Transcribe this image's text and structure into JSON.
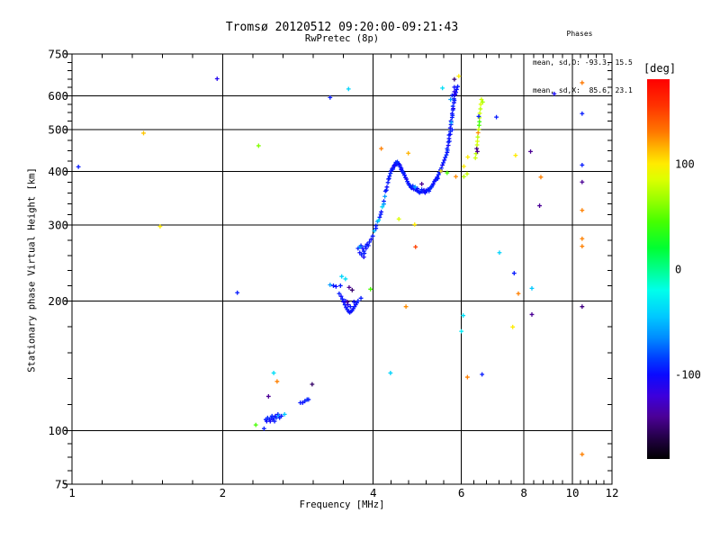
{
  "header": {
    "title": "Tromsø 20120512 09:20:00-09:21:43",
    "subtitle": "RwPretec (8p)"
  },
  "phases": {
    "heading": "Phases",
    "mean_o": "mean, sd,O: -93.3, 15.5",
    "mean_x": "mean, sd,X:  85.6, 23.1"
  },
  "chart_data": {
    "type": "scatter",
    "title": "Tromsø 20120512 09:20:00-09:21:43",
    "subtitle": "RwPretec (8p)",
    "xlabel": "Frequency [MHz]",
    "ylabel": "Stationary phase Virtual Height [km]",
    "x_scale": "log",
    "y_scale": "log",
    "xlim": [
      1,
      12
    ],
    "ylim": [
      75,
      750
    ],
    "x_major_ticks": [
      1,
      2,
      4,
      6,
      8,
      10,
      12
    ],
    "y_major_ticks": [
      75,
      100,
      200,
      300,
      400,
      500,
      600,
      750
    ],
    "grid_x": [
      2,
      4,
      6,
      8,
      10
    ],
    "grid_y": [
      100,
      200,
      300,
      400,
      500,
      600
    ],
    "grid_on": true,
    "marker": "plus",
    "frame_color": "#000000",
    "background_color": "#ffffff",
    "colorbar": {
      "label": "[deg]",
      "min": -180,
      "max": 180,
      "ticks": [
        {
          "value": 100,
          "label": "100"
        },
        {
          "value": 0,
          "label": "0"
        },
        {
          "value": -100,
          "label": "-100"
        }
      ],
      "colormap": [
        [
          180,
          [
            255,
            0,
            0
          ]
        ],
        [
          155,
          [
            255,
            50,
            0
          ]
        ],
        [
          130,
          [
            255,
            120,
            0
          ]
        ],
        [
          115,
          [
            255,
            180,
            0
          ]
        ],
        [
          100,
          [
            255,
            235,
            0
          ]
        ],
        [
          85,
          [
            220,
            255,
            0
          ]
        ],
        [
          65,
          [
            150,
            255,
            0
          ]
        ],
        [
          45,
          [
            70,
            255,
            0
          ]
        ],
        [
          20,
          [
            0,
            255,
            50
          ]
        ],
        [
          0,
          [
            0,
            255,
            140
          ]
        ],
        [
          -20,
          [
            0,
            255,
            235
          ]
        ],
        [
          -45,
          [
            0,
            200,
            255
          ]
        ],
        [
          -65,
          [
            0,
            140,
            255
          ]
        ],
        [
          -85,
          [
            0,
            60,
            255
          ]
        ],
        [
          -100,
          [
            10,
            10,
            255
          ]
        ],
        [
          -120,
          [
            60,
            0,
            220
          ]
        ],
        [
          -140,
          [
            75,
            0,
            150
          ]
        ],
        [
          -160,
          [
            35,
            0,
            70
          ]
        ],
        [
          -180,
          [
            0,
            0,
            0
          ]
        ]
      ]
    },
    "points_format": [
      "frequency_MHz",
      "virtual_height_km",
      "phase_deg"
    ],
    "points": [
      [
        2.33,
        103,
        45
      ],
      [
        2.42,
        101,
        -95
      ],
      [
        2.44,
        106,
        -95
      ],
      [
        2.45,
        105,
        -100
      ],
      [
        2.46,
        107,
        -90
      ],
      [
        2.47,
        120,
        -140
      ],
      [
        2.48,
        106,
        -95
      ],
      [
        2.49,
        105,
        -105
      ],
      [
        2.5,
        107,
        -95
      ],
      [
        2.51,
        108,
        -90
      ],
      [
        2.52,
        106,
        -100
      ],
      [
        2.53,
        136,
        -35
      ],
      [
        2.53,
        107,
        -95
      ],
      [
        2.54,
        105,
        -95
      ],
      [
        2.55,
        108,
        -100
      ],
      [
        2.56,
        107,
        -90
      ],
      [
        2.57,
        130,
        128
      ],
      [
        2.58,
        109,
        -95
      ],
      [
        2.59,
        108,
        -60
      ],
      [
        2.6,
        107,
        -95
      ],
      [
        2.62,
        108,
        -95
      ],
      [
        2.66,
        109,
        -45
      ],
      [
        2.86,
        116,
        -95
      ],
      [
        2.89,
        116,
        -100
      ],
      [
        2.92,
        117,
        -95
      ],
      [
        2.95,
        118,
        -90
      ],
      [
        2.97,
        118,
        -95
      ],
      [
        3.02,
        128,
        -152
      ],
      [
        3.28,
        218,
        -60
      ],
      [
        3.33,
        217,
        -95
      ],
      [
        3.37,
        216,
        -100
      ],
      [
        3.44,
        217,
        -95
      ],
      [
        3.46,
        228,
        -40
      ],
      [
        3.52,
        225,
        -35
      ],
      [
        3.42,
        208,
        -95
      ],
      [
        3.45,
        205,
        -100
      ],
      [
        3.47,
        202,
        -95
      ],
      [
        3.49,
        199,
        -105
      ],
      [
        3.51,
        196,
        -95
      ],
      [
        3.53,
        193,
        -100
      ],
      [
        3.55,
        191,
        -95
      ],
      [
        3.57,
        189,
        -100
      ],
      [
        3.59,
        188,
        -95
      ],
      [
        3.61,
        189,
        -105
      ],
      [
        3.63,
        190,
        -95
      ],
      [
        3.65,
        192,
        -100
      ],
      [
        3.67,
        194,
        -95
      ],
      [
        3.69,
        196,
        -100
      ],
      [
        3.71,
        198,
        -95
      ],
      [
        3.73,
        200,
        -95
      ],
      [
        3.66,
        199,
        -100
      ],
      [
        3.6,
        194,
        -95
      ],
      [
        3.56,
        196,
        -110
      ],
      [
        3.52,
        200,
        -100
      ],
      [
        3.78,
        203,
        -95
      ],
      [
        3.58,
        215,
        -140
      ],
      [
        3.63,
        212,
        -150
      ],
      [
        3.55,
        199,
        -140
      ],
      [
        3.73,
        265,
        -95
      ],
      [
        3.76,
        259,
        -100
      ],
      [
        3.79,
        256,
        -95
      ],
      [
        3.83,
        253,
        -105
      ],
      [
        3.84,
        258,
        -95
      ],
      [
        3.81,
        265,
        -100
      ],
      [
        3.78,
        269,
        -95
      ],
      [
        3.86,
        268,
        -90
      ],
      [
        3.89,
        271,
        -100
      ],
      [
        3.93,
        274,
        -95
      ],
      [
        3.96,
        278,
        -100
      ],
      [
        3.99,
        283,
        -95
      ],
      [
        3.76,
        267,
        -60
      ],
      [
        3.83,
        261,
        -95
      ],
      [
        3.87,
        265,
        -100
      ],
      [
        3.91,
        269,
        -95
      ],
      [
        4.02,
        291,
        -50
      ],
      [
        4.05,
        299,
        -95
      ],
      [
        4.08,
        306,
        -60
      ],
      [
        4.12,
        313,
        -95
      ],
      [
        4.15,
        322,
        -100
      ],
      [
        4.17,
        331,
        -40
      ],
      [
        4.2,
        341,
        -95
      ],
      [
        4.22,
        350,
        -60
      ],
      [
        4.23,
        360,
        -95
      ],
      [
        4.26,
        368,
        -100
      ],
      [
        4.28,
        377,
        -95
      ],
      [
        4.29,
        384,
        -105
      ],
      [
        4.31,
        390,
        -95
      ],
      [
        4.33,
        396,
        -90
      ],
      [
        4.34,
        401,
        -100
      ],
      [
        4.36,
        405,
        -95
      ],
      [
        4.38,
        408,
        -110
      ],
      [
        4.4,
        412,
        -95
      ],
      [
        4.41,
        414,
        -100
      ],
      [
        4.43,
        416,
        -95
      ],
      [
        4.45,
        418,
        -90
      ],
      [
        4.48,
        418,
        -100
      ],
      [
        4.5,
        416,
        -95
      ],
      [
        4.52,
        414,
        -105
      ],
      [
        4.53,
        410,
        -95
      ],
      [
        4.55,
        407,
        -100
      ],
      [
        4.57,
        401,
        -95
      ],
      [
        4.59,
        398,
        -90
      ],
      [
        4.62,
        392,
        -100
      ],
      [
        4.64,
        387,
        -95
      ],
      [
        4.66,
        384,
        -110
      ],
      [
        4.68,
        379,
        -95
      ],
      [
        4.7,
        375,
        -100
      ],
      [
        4.72,
        372,
        -95
      ],
      [
        4.74,
        371,
        -90
      ],
      [
        4.76,
        367,
        -100
      ],
      [
        4.78,
        366,
        -95
      ],
      [
        4.82,
        364,
        -105
      ],
      [
        4.86,
        363,
        -95
      ],
      [
        4.89,
        361,
        -100
      ],
      [
        4.93,
        359,
        -95
      ],
      [
        4.97,
        359,
        -90
      ],
      [
        5.01,
        359,
        -100
      ],
      [
        5.06,
        359,
        -95
      ],
      [
        5.1,
        361,
        -105
      ],
      [
        5.14,
        363,
        -95
      ],
      [
        5.18,
        364,
        -100
      ],
      [
        5.23,
        368,
        -95
      ],
      [
        5.25,
        371,
        -90
      ],
      [
        5.27,
        374,
        -100
      ],
      [
        5.3,
        379,
        -95
      ],
      [
        5.32,
        382,
        -105
      ],
      [
        5.35,
        384,
        -95
      ],
      [
        5.37,
        388,
        -100
      ],
      [
        5.4,
        393,
        -95
      ],
      [
        5.42,
        398,
        -90
      ],
      [
        5.45,
        403,
        -100
      ],
      [
        5.47,
        407,
        -95
      ],
      [
        5.5,
        414,
        -105
      ],
      [
        5.52,
        419,
        -95
      ],
      [
        5.55,
        425,
        -100
      ],
      [
        5.57,
        431,
        -95
      ],
      [
        5.6,
        437,
        -90
      ],
      [
        5.62,
        443,
        -100
      ],
      [
        5.62,
        452,
        -95
      ],
      [
        5.65,
        460,
        -105
      ],
      [
        5.65,
        468,
        -95
      ],
      [
        5.67,
        477,
        -100
      ],
      [
        5.67,
        486,
        -95
      ],
      [
        5.7,
        495,
        -90
      ],
      [
        5.7,
        505,
        -100
      ],
      [
        5.72,
        514,
        -95
      ],
      [
        5.72,
        524,
        -105
      ],
      [
        5.75,
        534,
        -95
      ],
      [
        5.75,
        545,
        -100
      ],
      [
        5.77,
        556,
        -95
      ],
      [
        5.77,
        567,
        -90
      ],
      [
        5.8,
        578,
        -100
      ],
      [
        5.8,
        590,
        -95
      ],
      [
        5.82,
        602,
        -105
      ],
      [
        5.85,
        611,
        -95
      ],
      [
        5.87,
        620,
        -100
      ],
      [
        5.9,
        630,
        -95
      ],
      [
        4.8,
        370,
        -90
      ],
      [
        4.9,
        365,
        -100
      ],
      [
        5.0,
        363,
        -90
      ],
      [
        5.05,
        362,
        -105
      ],
      [
        5.12,
        360,
        -95
      ],
      [
        5.2,
        366,
        -90
      ],
      [
        4.95,
        357,
        -95
      ],
      [
        5.08,
        357,
        -100
      ],
      [
        5.17,
        360,
        -95
      ],
      [
        4.85,
        368,
        -60
      ],
      [
        5.38,
        385,
        -95
      ],
      [
        5.44,
        399,
        -100
      ],
      [
        4.6,
        396,
        -95
      ],
      [
        4.55,
        404,
        -100
      ],
      [
        4.46,
        415,
        -90
      ],
      [
        4.49,
        417,
        -100
      ],
      [
        4.44,
        420,
        -95
      ],
      [
        4.47,
        421,
        -90
      ],
      [
        4.42,
        413,
        -105
      ],
      [
        4.38,
        405,
        -95
      ],
      [
        4.3,
        385,
        -95
      ],
      [
        4.25,
        362,
        -95
      ],
      [
        4.2,
        336,
        -60
      ],
      [
        4.14,
        318,
        -95
      ],
      [
        4.1,
        308,
        -40
      ],
      [
        4.05,
        295,
        -95
      ],
      [
        5.73,
        520,
        -60
      ],
      [
        5.76,
        540,
        -95
      ],
      [
        5.78,
        560,
        -105
      ],
      [
        5.81,
        585,
        -95
      ],
      [
        5.83,
        605,
        -110
      ],
      [
        5.75,
        500,
        -95
      ],
      [
        5.7,
        488,
        -100
      ],
      [
        5.68,
        470,
        -95
      ],
      [
        5.63,
        448,
        -90
      ],
      [
        5.81,
        655,
        -150
      ],
      [
        5.93,
        666,
        100
      ],
      [
        5.5,
        625,
        -35
      ],
      [
        5.81,
        628,
        -100
      ],
      [
        5.81,
        613,
        -110
      ],
      [
        5.75,
        601,
        -95
      ],
      [
        5.71,
        588,
        -60
      ],
      [
        5.46,
        401,
        100
      ],
      [
        5.62,
        397,
        45
      ],
      [
        5.85,
        389,
        125
      ],
      [
        6.07,
        389,
        75
      ],
      [
        6.16,
        395,
        80
      ],
      [
        6.07,
        411,
        100
      ],
      [
        6.18,
        432,
        100
      ],
      [
        6.4,
        430,
        80
      ],
      [
        6.42,
        440,
        75
      ],
      [
        6.44,
        452,
        -145
      ],
      [
        6.45,
        461,
        80
      ],
      [
        6.46,
        470,
        85
      ],
      [
        6.47,
        481,
        75
      ],
      [
        6.48,
        492,
        125
      ],
      [
        6.5,
        501,
        80
      ],
      [
        6.51,
        512,
        45
      ],
      [
        6.52,
        522,
        40
      ],
      [
        6.52,
        533,
        75
      ],
      [
        6.53,
        546,
        80
      ],
      [
        6.55,
        559,
        75
      ],
      [
        6.56,
        573,
        85
      ],
      [
        6.58,
        588,
        80
      ],
      [
        6.62,
        580,
        70
      ],
      [
        6.5,
        537,
        -95
      ],
      [
        6.46,
        445,
        -140
      ],
      [
        1.03,
        410,
        -95
      ],
      [
        1.39,
        491,
        110
      ],
      [
        1.5,
        298,
        100
      ],
      [
        1.95,
        657,
        -110
      ],
      [
        2.14,
        209,
        -95
      ],
      [
        2.36,
        459,
        60
      ],
      [
        3.28,
        594,
        -95
      ],
      [
        3.57,
        622,
        -40
      ],
      [
        3.95,
        213,
        45
      ],
      [
        4.65,
        194,
        125
      ],
      [
        4.15,
        452,
        128
      ],
      [
        4.7,
        441,
        115
      ],
      [
        4.5,
        310,
        85
      ],
      [
        4.84,
        301,
        100
      ],
      [
        4.86,
        267,
        150
      ],
      [
        5.0,
        374,
        -140
      ],
      [
        6.05,
        185,
        -35
      ],
      [
        6.0,
        170,
        -30
      ],
      [
        6.17,
        133,
        128
      ],
      [
        6.6,
        135,
        -95
      ],
      [
        4.33,
        136,
        -40
      ],
      [
        7.05,
        535,
        -95
      ],
      [
        7.15,
        259,
        -40
      ],
      [
        7.6,
        174,
        100
      ],
      [
        7.65,
        232,
        -95
      ],
      [
        7.7,
        436,
        100
      ],
      [
        7.8,
        208,
        128
      ],
      [
        8.25,
        445,
        -140
      ],
      [
        8.3,
        214,
        -45
      ],
      [
        8.3,
        186,
        -140
      ],
      [
        8.6,
        333,
        -140
      ],
      [
        8.65,
        388,
        128
      ],
      [
        9.2,
        606,
        -105
      ],
      [
        10.46,
        643,
        130
      ],
      [
        10.46,
        545,
        -95
      ],
      [
        10.46,
        414,
        -95
      ],
      [
        10.46,
        378,
        -140
      ],
      [
        10.46,
        325,
        128
      ],
      [
        10.46,
        279,
        128
      ],
      [
        10.46,
        268,
        128
      ],
      [
        10.46,
        194,
        -145
      ],
      [
        10.46,
        88,
        128
      ]
    ]
  }
}
